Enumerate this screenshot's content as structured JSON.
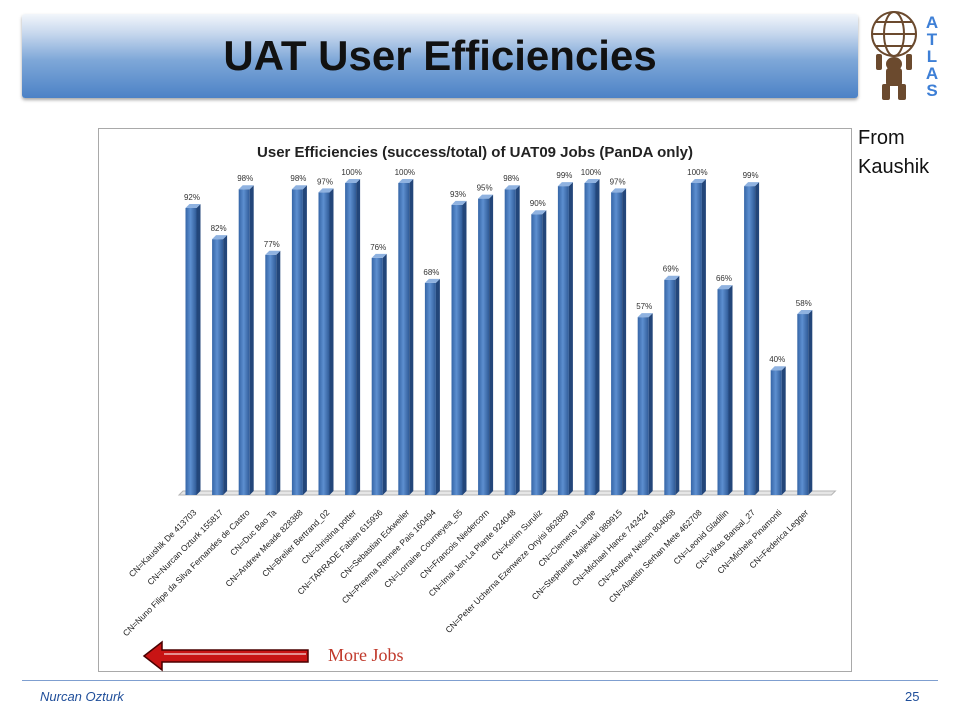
{
  "slide": {
    "title": "UAT User Efficiencies",
    "note_line1": "From",
    "note_line2": "Kaushik",
    "arrow_label": "More Jobs",
    "author": "Nurcan Ozturk",
    "page_number": "25",
    "logo_letters": [
      "A",
      "T",
      "L",
      "A",
      "S"
    ]
  },
  "chart_data": {
    "type": "bar",
    "title": "User Efficiencies (success/total) of UAT09 Jobs (PanDA only)",
    "xlabel": "",
    "ylabel": "",
    "ylim": [
      0,
      100
    ],
    "grid": false,
    "bar_color": "#4a7fc1",
    "categories": [
      "CN=Kaushik De 413703",
      "CN=Nurcan Ozturk 155817",
      "CN=Nuno Filipe da Silva Fernandes de Castro",
      "CN=Duc Bao Ta",
      "CN=Andrew Meade 828388",
      "CN=Brelier Bertrand_02",
      "CN=christina potter",
      "CN=TARRADE Fabien 615936",
      "CN=Sebastian Eckweiler",
      "CN=Preema Rennee Pais 160494",
      "CN=Lorraine Courneyea_65",
      "CN=Francois Niedercorn",
      "CN=Imai Jen-La Plante 924048",
      "CN=Kerim Suruliz",
      "CN=Peter Ucherna Ezenweze Onyisi 862889",
      "CN=Clemens Lange",
      "CN=Stephanie Majewski 989915",
      "CN=Michael Hance 742424",
      "CN=Andrew Nelson 804068",
      "CN=Alaettin Serhan Mete 462708",
      "CN=Leonid Gladilin",
      "CN=Vikas Bansal_27",
      "CN=Michele Pinamonti",
      "CN=Federica Legger"
    ],
    "values": [
      92,
      82,
      98,
      77,
      98,
      97,
      100,
      76,
      100,
      68,
      93,
      95,
      98,
      90,
      99,
      100,
      97,
      57,
      69,
      100,
      66,
      99,
      40,
      58
    ],
    "labels": [
      "92%",
      "82%",
      "98%",
      "77%",
      "98%",
      "97%",
      "100%",
      "76%",
      "100%",
      "68%",
      "93%",
      "95%",
      "98%",
      "90%",
      "99%",
      "100%",
      "97%",
      "57%",
      "69%",
      "100%",
      "66%",
      "99%",
      "40%",
      "58%"
    ]
  }
}
